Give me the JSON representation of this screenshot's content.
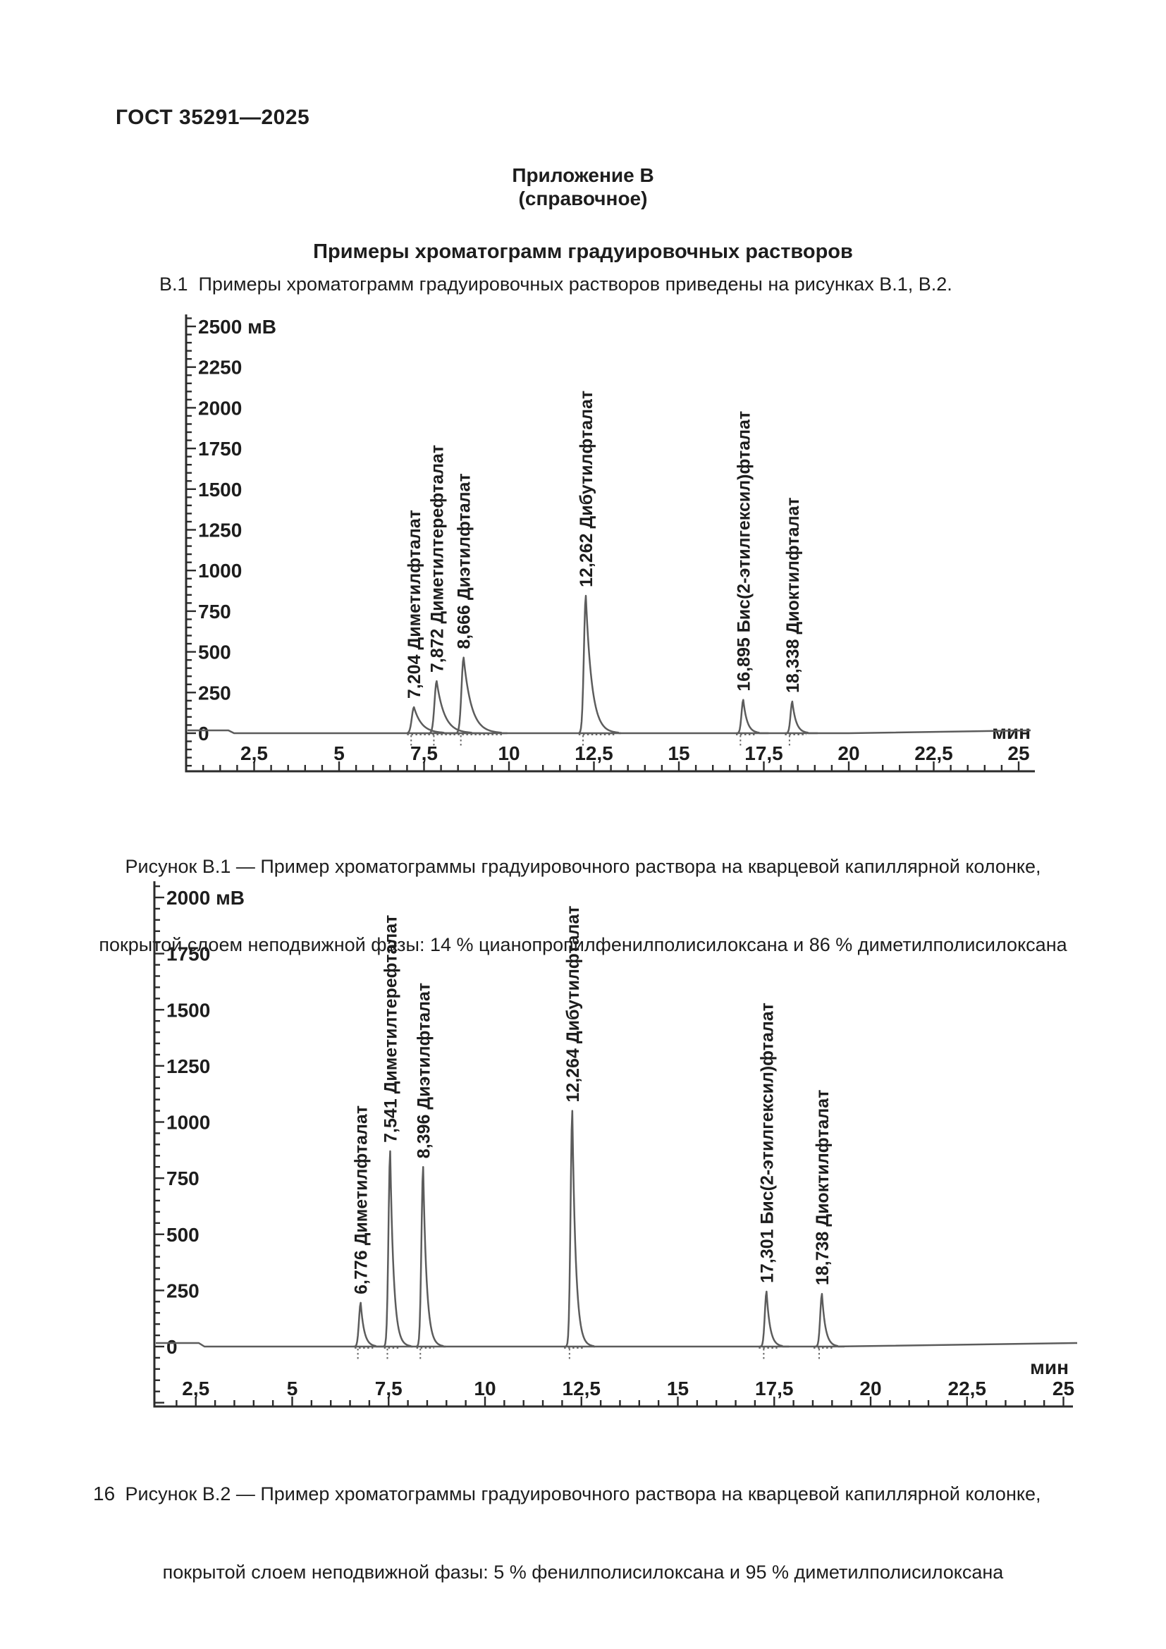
{
  "page": {
    "header": "ГОСТ 35291—2025",
    "appendix_title": "Приложение В",
    "appendix_subtitle": "(справочное)",
    "section_title": "Примеры хроматограмм градуировочных растворов",
    "intro": "В.1  Примеры хроматограмм градуировочных растворов приведены на рисунках В.1, В.2.",
    "page_number": "16"
  },
  "colors": {
    "text": "#1d1d1d",
    "axis": "#2b2b2b",
    "trace": "#5c5c5c",
    "dots": "#6a6a6a"
  },
  "chart_data": [
    {
      "id": "figure-b1",
      "type": "line",
      "title": "Рисунок В.1",
      "y_unit": "мВ",
      "x_unit": "мин",
      "y_axis": {
        "max": 2500,
        "major_step": 250,
        "minor_step": 50,
        "labels": [
          "0",
          "250",
          "500",
          "750",
          "1000",
          "1250",
          "1500",
          "1750",
          "2000",
          "2250",
          "2500"
        ]
      },
      "x_axis": {
        "min": 0.5,
        "max": 25.5,
        "major_step": 2.5,
        "minor_step": 0.5,
        "tick_labels": [
          "2,5",
          "5",
          "7,5",
          "10",
          "12,5",
          "15",
          "17,5",
          "20",
          "22,5",
          "25"
        ]
      },
      "peaks": [
        {
          "rt_min": 7.204,
          "height_mv": 160,
          "label": "7,204 Диметилфталат",
          "compound": "Диметилфталат",
          "shape": "wide"
        },
        {
          "rt_min": 7.872,
          "height_mv": 320,
          "label": "7,872 Диметилтерефталат",
          "compound": "Диметилтерефталат",
          "shape": "wide"
        },
        {
          "rt_min": 8.666,
          "height_mv": 465,
          "label": "8,666 Диэтилфталат",
          "compound": "Диэтилфталат",
          "shape": "wide"
        },
        {
          "rt_min": 12.262,
          "height_mv": 845,
          "label": "12,262 Дибутилфталат",
          "compound": "Дибутилфталат",
          "shape": "mid"
        },
        {
          "rt_min": 16.895,
          "height_mv": 205,
          "label": "16,895 Бис(2-этилгексил)фталат",
          "compound": "Бис(2-этилгексил)фталат",
          "shape": "narrow"
        },
        {
          "rt_min": 18.338,
          "height_mv": 195,
          "label": "18,338 Диоктилфталат",
          "compound": "Диоктилфталат",
          "shape": "narrow"
        }
      ],
      "integration_segments": [
        [
          7.0,
          9.8
        ],
        [
          12.05,
          13.15
        ],
        [
          16.68,
          17.25
        ],
        [
          18.12,
          18.75
        ]
      ],
      "caption_lines": [
        "Рисунок В.1 — Пример хроматограммы градуировочного раствора на кварцевой капиллярной колонке,",
        "покрытой слоем неподвижной фазы: 14 % цианопропилфенилполисилоксана и 86 % диметилполисилоксана"
      ]
    },
    {
      "id": "figure-b2",
      "type": "line",
      "title": "Рисунок В.2",
      "y_unit": "мВ",
      "x_unit": "мин",
      "y_axis": {
        "max": 2000,
        "major_step": 250,
        "minor_step": 50,
        "labels": [
          "0",
          "250",
          "500",
          "750",
          "1000",
          "1250",
          "1500",
          "1750",
          "2000"
        ]
      },
      "x_axis": {
        "min": 1.5,
        "max": 25.3,
        "major_step": 2.5,
        "minor_step": 0.5,
        "tick_labels": [
          "2,5",
          "5",
          "7,5",
          "10",
          "12,5",
          "15",
          "17,5",
          "20",
          "22,5",
          "25"
        ]
      },
      "peaks": [
        {
          "rt_min": 6.776,
          "height_mv": 195,
          "label": "6,776 Диметилфталат",
          "compound": "Диметилфталат",
          "shape": "narrow2"
        },
        {
          "rt_min": 7.541,
          "height_mv": 870,
          "label": "7,541 Диметилтерефталат",
          "compound": "Диметилтерефталат",
          "shape": "narrow2"
        },
        {
          "rt_min": 8.396,
          "height_mv": 800,
          "label": "8,396 Диэтилфталат",
          "compound": "Диэтилфталат",
          "shape": "narrow2"
        },
        {
          "rt_min": 12.264,
          "height_mv": 1050,
          "label": "12,264  Дибутилфталат",
          "compound": "Дибутилфталат",
          "shape": "narrow2"
        },
        {
          "rt_min": 17.301,
          "height_mv": 245,
          "label": "17,301 Бис(2-этилгексил)фталат",
          "compound": "Бис(2-этилгексил)фталат",
          "shape": "narrow2"
        },
        {
          "rt_min": 18.738,
          "height_mv": 235,
          "label": "18,738 Диоктилфталат",
          "compound": "Диоктилфталат",
          "shape": "narrow2"
        }
      ],
      "integration_segments": [
        [
          6.62,
          7.1
        ],
        [
          7.38,
          7.78
        ],
        [
          8.22,
          8.68
        ],
        [
          12.05,
          12.58
        ],
        [
          17.1,
          17.58
        ],
        [
          18.52,
          19.05
        ]
      ],
      "caption_lines": [
        "Рисунок В.2 — Пример хроматограммы градуировочного раствора на кварцевой капиллярной колонке,",
        "покрытой слоем неподвижной фазы: 5 % фенилполисилоксана и 95 % диметилполисилоксана"
      ]
    }
  ]
}
